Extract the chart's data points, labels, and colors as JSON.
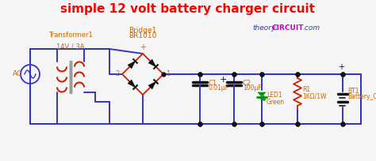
{
  "title": "simple 12 volt battery charger circuit",
  "title_color": "#ff0000",
  "title_fontsize": 11,
  "bg_color": "#f5f5f5",
  "wire_color": "#3333cc",
  "component_color": "#cc2200",
  "label_color": "#cc6600",
  "black": "#111111",
  "green": "#009900",
  "transformer_label1": "Transformer1",
  "transformer_label2": "14V / 3A",
  "bridge_label1": "Bridge1",
  "bridge_label2": "BR1010",
  "c1_label1": "C1",
  "c1_label2": "0.01µF",
  "c2_label1": "C2",
  "c2_label2": "100µF",
  "r1_label1": "R1",
  "r1_label2": "1KΩ/1W",
  "led_label1": "LED1",
  "led_label2": "Green",
  "bt1_label1": "BT1",
  "bt1_label2": "Battery_Cell",
  "ac_label": "AC",
  "wm_theory": "theory",
  "wm_circuit": "CIRCUIT",
  "wm_com": ".com"
}
